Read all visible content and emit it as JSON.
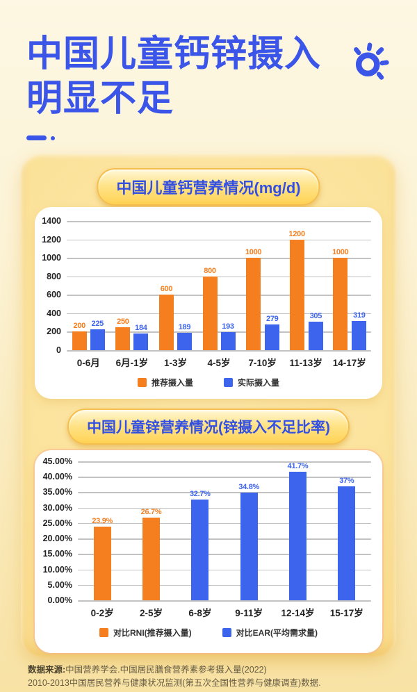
{
  "header": {
    "title_line1": "中国儿童钙锌摄入",
    "title_line2": "明显不足"
  },
  "footer": {
    "source_label": "数据来源:",
    "source_line1": "中国营养学会.中国居民膳食营养素参考摄入量(2022)",
    "source_line2": "2010-2013中国居民营养与健康状况监测(第五次全国性营养与健康调查)数据."
  },
  "colors": {
    "title_blue": "#3A55E8",
    "bar_orange": "#F57E1F",
    "bar_blue": "#3D64ED",
    "badge_gold": "#FFD254",
    "background_cream": "#FDF7E3",
    "gridline_gray": "#C2C2C2"
  },
  "chart_data": [
    {
      "type": "bar",
      "title": "中国儿童钙营养情况(mg/d)",
      "categories": [
        "0-6月",
        "6月-1岁",
        "1-3岁",
        "4-5岁",
        "7-10岁",
        "11-13岁",
        "14-17岁"
      ],
      "series": [
        {
          "name": "推荐摄入量",
          "color": "#F57E1F",
          "values": [
            200,
            250,
            600,
            800,
            1000,
            1200,
            1000
          ],
          "value_labels": [
            "200",
            "250",
            "600",
            "800",
            "1000",
            "1200",
            "1000"
          ]
        },
        {
          "name": "实际摄入量",
          "color": "#3D64ED",
          "values": [
            225,
            184,
            189,
            193,
            279,
            305,
            319
          ],
          "value_labels": [
            "225",
            "184",
            "189",
            "193",
            "279",
            "305",
            "319"
          ]
        }
      ],
      "ylim": [
        0,
        1400
      ],
      "ytick_step": 200,
      "ytick_format": "int",
      "grid": true,
      "legend_position": "bottom"
    },
    {
      "type": "bar",
      "title": "中国儿童锌营养情况(锌摄入不足比率)",
      "categories": [
        "0-2岁",
        "2-5岁",
        "6-8岁",
        "9-11岁",
        "12-14岁",
        "15-17岁"
      ],
      "values": [
        23.9,
        26.7,
        32.7,
        34.8,
        41.7,
        37
      ],
      "value_labels": [
        "23.9%",
        "26.7%",
        "32.7%",
        "34.8%",
        "41.7%",
        "37%"
      ],
      "bar_colors": [
        "#F57E1F",
        "#F57E1F",
        "#3D64ED",
        "#3D64ED",
        "#3D64ED",
        "#3D64ED"
      ],
      "ylim": [
        0,
        45
      ],
      "ytick_step": 5,
      "ytick_format": "percent2",
      "grid": true,
      "legend": [
        {
          "name": "对比RNI(推荐摄入量)",
          "color": "#F57E1F"
        },
        {
          "name": "对比EAR(平均需求量)",
          "color": "#3D64ED"
        }
      ],
      "legend_position": "bottom"
    }
  ]
}
